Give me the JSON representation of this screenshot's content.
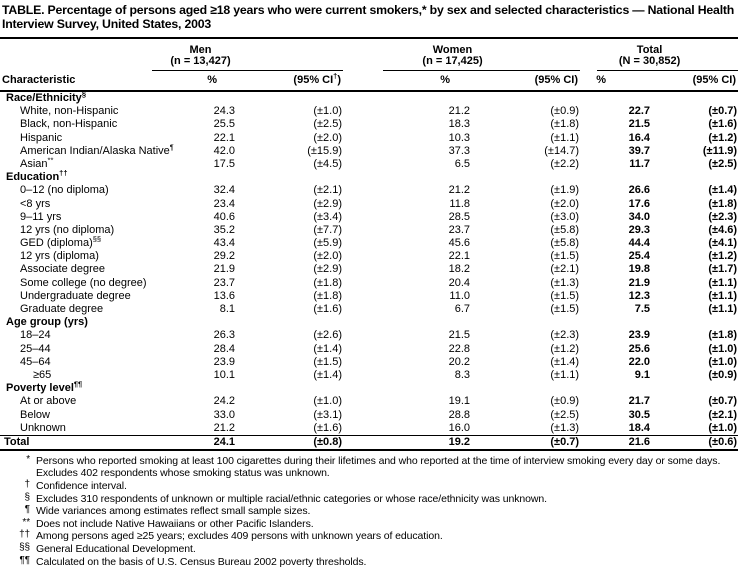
{
  "title": "TABLE. Percentage of persons aged ≥18 years who were current smokers,* by sex and selected characteristics — National Health Interview Survey, United States, 2003",
  "header": {
    "characteristic_label": "Characteristic",
    "groups": [
      {
        "name": "Men",
        "n": "(n = 13,427)",
        "pct_label": "%",
        "ci_pre": "(95% CI",
        "ci_sup": "†",
        "ci_post": ")"
      },
      {
        "name": "Women",
        "n": "(n = 17,425)",
        "pct_label": "%",
        "ci_pre": "(95% CI",
        "ci_sup": "",
        "ci_post": ")"
      },
      {
        "name": "Total",
        "n": "(N = 30,852)",
        "pct_label": "%",
        "ci_pre": "(95% CI",
        "ci_sup": "",
        "ci_post": ")"
      }
    ]
  },
  "rows": [
    {
      "kind": "section",
      "label": "Race/Ethnicity",
      "sup": "§"
    },
    {
      "kind": "item",
      "label": "White, non-Hispanic",
      "sup": "",
      "men_pct": "24.3",
      "men_ci": "(±1.0)",
      "women_pct": "21.2",
      "women_ci": "(±0.9)",
      "total_pct": "22.7",
      "total_ci": "(±0.7)"
    },
    {
      "kind": "item",
      "label": "Black, non-Hispanic",
      "sup": "",
      "men_pct": "25.5",
      "men_ci": "(±2.5)",
      "women_pct": "18.3",
      "women_ci": "(±1.8)",
      "total_pct": "21.5",
      "total_ci": "(±1.6)"
    },
    {
      "kind": "item",
      "label": "Hispanic",
      "sup": "",
      "men_pct": "22.1",
      "men_ci": "(±2.0)",
      "women_pct": "10.3",
      "women_ci": "(±1.1)",
      "total_pct": "16.4",
      "total_ci": "(±1.2)"
    },
    {
      "kind": "item",
      "label": "American Indian/Alaska Native",
      "sup": "¶",
      "men_pct": "42.0",
      "men_ci": "(±15.9)",
      "women_pct": "37.3",
      "women_ci": "(±14.7)",
      "total_pct": "39.7",
      "total_ci": "(±11.9)"
    },
    {
      "kind": "item",
      "label": "Asian",
      "sup": "**",
      "men_pct": "17.5",
      "men_ci": "(±4.5)",
      "women_pct": "6.5",
      "women_ci": "(±2.2)",
      "total_pct": "11.7",
      "total_ci": "(±2.5)"
    },
    {
      "kind": "section",
      "label": "Education",
      "sup": "††"
    },
    {
      "kind": "item",
      "label": "0–12 (no diploma)",
      "sup": "",
      "men_pct": "32.4",
      "men_ci": "(±2.1)",
      "women_pct": "21.2",
      "women_ci": "(±1.9)",
      "total_pct": "26.6",
      "total_ci": "(±1.4)"
    },
    {
      "kind": "item",
      "label": "<8 yrs",
      "sup": "",
      "men_pct": "23.4",
      "men_ci": "(±2.9)",
      "women_pct": "11.8",
      "women_ci": "(±2.0)",
      "total_pct": "17.6",
      "total_ci": "(±1.8)"
    },
    {
      "kind": "item",
      "label": "9–11 yrs",
      "sup": "",
      "men_pct": "40.6",
      "men_ci": "(±3.4)",
      "women_pct": "28.5",
      "women_ci": "(±3.0)",
      "total_pct": "34.0",
      "total_ci": "(±2.3)"
    },
    {
      "kind": "item",
      "label": "12 yrs (no diploma)",
      "sup": "",
      "men_pct": "35.2",
      "men_ci": "(±7.7)",
      "women_pct": "23.7",
      "women_ci": "(±5.8)",
      "total_pct": "29.3",
      "total_ci": "(±4.6)"
    },
    {
      "kind": "item",
      "label": "GED (diploma)",
      "sup": "§§",
      "men_pct": "43.4",
      "men_ci": "(±5.9)",
      "women_pct": "45.6",
      "women_ci": "(±5.8)",
      "total_pct": "44.4",
      "total_ci": "(±4.1)"
    },
    {
      "kind": "item",
      "label": "12 yrs (diploma)",
      "sup": "",
      "men_pct": "29.2",
      "men_ci": "(±2.0)",
      "women_pct": "22.1",
      "women_ci": "(±1.5)",
      "total_pct": "25.4",
      "total_ci": "(±1.2)"
    },
    {
      "kind": "item",
      "label": "Associate degree",
      "sup": "",
      "men_pct": "21.9",
      "men_ci": "(±2.9)",
      "women_pct": "18.2",
      "women_ci": "(±2.1)",
      "total_pct": "19.8",
      "total_ci": "(±1.7)"
    },
    {
      "kind": "item",
      "label": "Some college (no degree)",
      "sup": "",
      "men_pct": "23.7",
      "men_ci": "(±1.8)",
      "women_pct": "20.4",
      "women_ci": "(±1.3)",
      "total_pct": "21.9",
      "total_ci": "(±1.1)"
    },
    {
      "kind": "item",
      "label": "Undergraduate degree",
      "sup": "",
      "men_pct": "13.6",
      "men_ci": "(±1.8)",
      "women_pct": "11.0",
      "women_ci": "(±1.5)",
      "total_pct": "12.3",
      "total_ci": "(±1.1)"
    },
    {
      "kind": "item",
      "label": "Graduate degree",
      "sup": "",
      "men_pct": "8.1",
      "men_ci": "(±1.6)",
      "women_pct": "6.7",
      "women_ci": "(±1.5)",
      "total_pct": "7.5",
      "total_ci": "(±1.1)"
    },
    {
      "kind": "section",
      "label": "Age group (yrs)",
      "sup": ""
    },
    {
      "kind": "item",
      "label": "18–24",
      "sup": "",
      "men_pct": "26.3",
      "men_ci": "(±2.6)",
      "women_pct": "21.5",
      "women_ci": "(±2.3)",
      "total_pct": "23.9",
      "total_ci": "(±1.8)"
    },
    {
      "kind": "item",
      "label": "25–44",
      "sup": "",
      "men_pct": "28.4",
      "men_ci": "(±1.4)",
      "women_pct": "22.8",
      "women_ci": "(±1.2)",
      "total_pct": "25.6",
      "total_ci": "(±1.0)"
    },
    {
      "kind": "item",
      "label": "45–64",
      "sup": "",
      "men_pct": "23.9",
      "men_ci": "(±1.5)",
      "women_pct": "20.2",
      "women_ci": "(±1.4)",
      "total_pct": "22.0",
      "total_ci": "(±1.0)"
    },
    {
      "kind": "item-deep",
      "label": "≥65",
      "sup": "",
      "men_pct": "10.1",
      "men_ci": "(±1.4)",
      "women_pct": "8.3",
      "women_ci": "(±1.1)",
      "total_pct": "9.1",
      "total_ci": "(±0.9)"
    },
    {
      "kind": "section",
      "label": "Poverty level",
      "sup": "¶¶"
    },
    {
      "kind": "item",
      "label": "At or above",
      "sup": "",
      "men_pct": "24.2",
      "men_ci": "(±1.0)",
      "women_pct": "19.1",
      "women_ci": "(±0.9)",
      "total_pct": "21.7",
      "total_ci": "(±0.7)"
    },
    {
      "kind": "item",
      "label": "Below",
      "sup": "",
      "men_pct": "33.0",
      "men_ci": "(±3.1)",
      "women_pct": "28.8",
      "women_ci": "(±2.5)",
      "total_pct": "30.5",
      "total_ci": "(±2.1)"
    },
    {
      "kind": "item",
      "label": "Unknown",
      "sup": "",
      "men_pct": "21.2",
      "men_ci": "(±1.6)",
      "women_pct": "16.0",
      "women_ci": "(±1.3)",
      "total_pct": "18.4",
      "total_ci": "(±1.0)"
    },
    {
      "kind": "total",
      "label": "Total",
      "sup": "",
      "men_pct": "24.1",
      "men_ci": "(±0.8)",
      "women_pct": "19.2",
      "women_ci": "(±0.7)",
      "total_pct": "21.6",
      "total_ci": "(±0.6)"
    }
  ],
  "footnotes": [
    {
      "marker": "*",
      "text": "Persons who reported smoking at least 100 cigarettes during their lifetimes and who reported at the time of interview smoking every day or some days. Excludes 402 respondents whose smoking status was unknown."
    },
    {
      "marker": "†",
      "text": "Confidence interval."
    },
    {
      "marker": "§",
      "text": "Excludes 310 respondents of unknown or multiple racial/ethnic categories or whose race/ethnicity was unknown."
    },
    {
      "marker": "¶",
      "text": "Wide variances among estimates reflect small sample sizes."
    },
    {
      "marker": "**",
      "text": "Does not include Native Hawaiians or other Pacific Islanders."
    },
    {
      "marker": "††",
      "text": "Among persons aged ≥25 years; excludes 409 persons with unknown years of education."
    },
    {
      "marker": "§§",
      "text": "General Educational Development."
    },
    {
      "marker": "¶¶",
      "text": "Calculated on the basis of U.S. Census Bureau 2002 poverty thresholds."
    }
  ]
}
